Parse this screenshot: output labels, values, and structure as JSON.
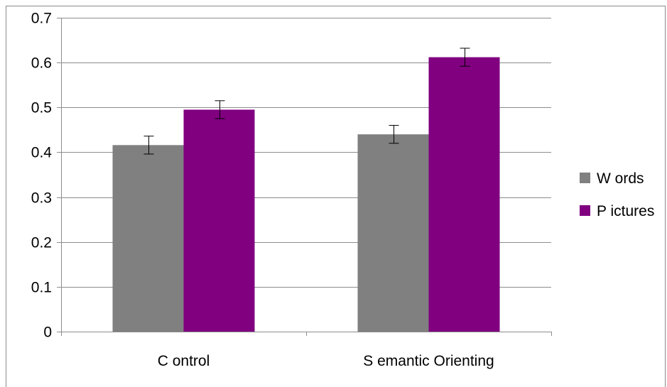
{
  "chart_data": {
    "type": "bar",
    "categories": [
      "C ontrol",
      "S emantic Orienting"
    ],
    "series": [
      {
        "name": "W ords",
        "color": "#808080",
        "values": [
          0.416,
          0.44
        ],
        "error": [
          0.02,
          0.02
        ]
      },
      {
        "name": "P ictures",
        "color": "#800080",
        "values": [
          0.495,
          0.612
        ],
        "error": [
          0.02,
          0.02
        ]
      }
    ],
    "y_ticks": [
      "0",
      "0.1",
      "0.2",
      "0.3",
      "0.4",
      "0.5",
      "0.6",
      "0.7"
    ],
    "ylim": [
      0,
      0.7
    ],
    "grid": true,
    "legend_position": "right",
    "title": "",
    "xlabel": "",
    "ylabel": ""
  }
}
